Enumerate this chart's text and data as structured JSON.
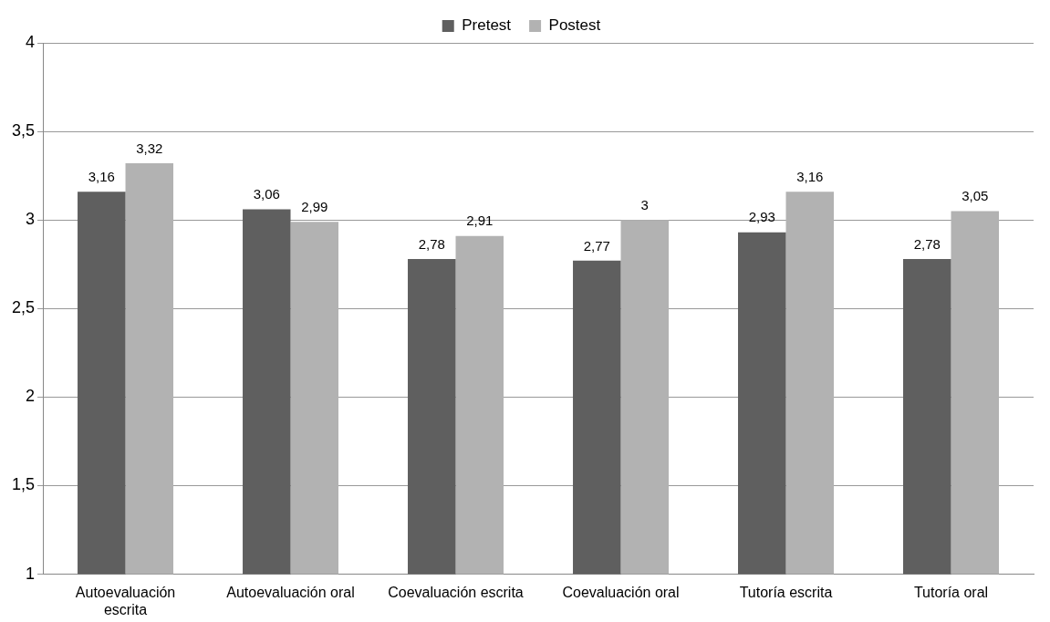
{
  "chart_data": {
    "type": "bar",
    "categories": [
      "Autoevaluación escrita",
      "Autoevaluación oral",
      "Coevaluación escrita",
      "Coevaluación oral",
      "Tutoría escrita",
      "Tutoría oral"
    ],
    "series": [
      {
        "name": "Pretest",
        "color": "#5f5f5f",
        "values": [
          3.16,
          3.06,
          2.78,
          2.77,
          2.93,
          2.78
        ],
        "value_labels": [
          "3,16",
          "3,06",
          "2,78",
          "2,77",
          "2,93",
          "2,78"
        ]
      },
      {
        "name": "Postest",
        "color": "#b2b2b2",
        "values": [
          3.32,
          2.99,
          2.91,
          3,
          3.16,
          3.05
        ],
        "value_labels": [
          "3,32",
          "2,99",
          "2,91",
          "3",
          "3,16",
          "3,05"
        ]
      }
    ],
    "ylim": [
      1,
      4
    ],
    "yticks": [
      1,
      {
        "value": 1.5,
        "label": "1,5"
      },
      2,
      {
        "value": 2.5,
        "label": "2,5"
      },
      3,
      {
        "value": 3.5,
        "label": "3,5"
      },
      4
    ],
    "grid": "y",
    "legend": "top"
  }
}
